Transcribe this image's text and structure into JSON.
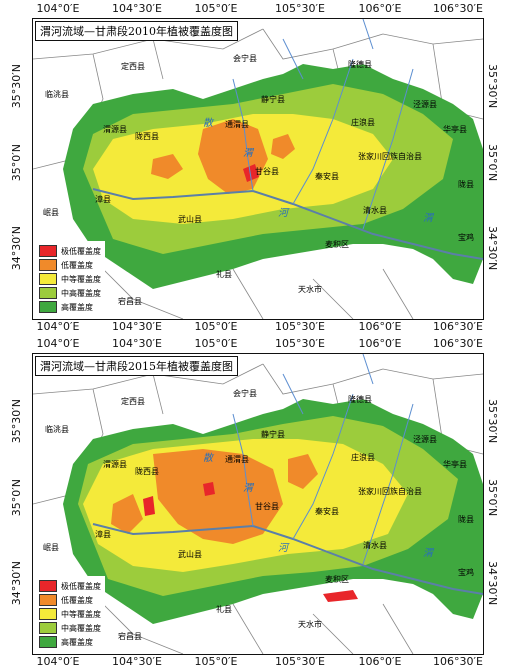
{
  "maps": [
    {
      "title": "渭河流域—甘肃段2010年植被覆盖度图",
      "year": "2010"
    },
    {
      "title": "渭河流域—甘肃段2015年植被覆盖度图",
      "year": "2015"
    }
  ],
  "axis": {
    "lon_ticks": [
      "104°0′E",
      "104°30′E",
      "105°0′E",
      "105°30′E",
      "106°0′E",
      "106°30′E"
    ],
    "lat_ticks": [
      "35°30′N",
      "35°0′N",
      "34°30′N"
    ]
  },
  "legend": [
    {
      "label": "极低覆盖度",
      "color": "#e8262a"
    },
    {
      "label": "低覆盖度",
      "color": "#f08a2a"
    },
    {
      "label": "中等覆盖度",
      "color": "#f4ea3a"
    },
    {
      "label": "中高覆盖度",
      "color": "#9ccc3c"
    },
    {
      "label": "高覆盖度",
      "color": "#3fa83f"
    }
  ],
  "places": {
    "dingxi": "定西县",
    "huining": "会宁县",
    "longde": "隆德县",
    "lintao": "临洮县",
    "jingning": "静宁县",
    "jingyuan": "泾源县",
    "huating": "华亭县",
    "weiyuan": "渭源县",
    "longxi": "陇西县",
    "tongwei": "通渭县",
    "zhuanglang": "庄浪县",
    "zhangjiachuan": "张家川回族自治县",
    "qinan": "秦安县",
    "gangu": "甘谷县",
    "long": "陇县",
    "zhang": "漳县",
    "min": "岷县",
    "wushan": "武山县",
    "qingshui": "清水县",
    "maiji": "麦积区",
    "baoji": "宝鸡",
    "li": "礼县",
    "tianshui": "天水市",
    "dangchang": "宕昌县"
  },
  "rivers": [
    "渭",
    "河",
    "散",
    "渭"
  ]
}
